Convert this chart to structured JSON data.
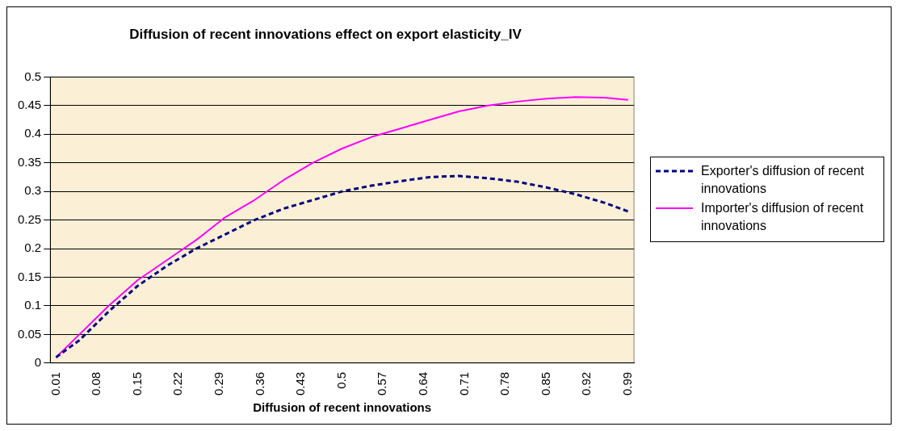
{
  "chart_data": {
    "type": "line",
    "title": "Diffusion of recent innovations effect on export elasticity_IV",
    "xlabel": "Diffusion of recent innovations",
    "x": [
      0.01,
      0.05,
      0.1,
      0.15,
      0.2,
      0.25,
      0.3,
      0.35,
      0.4,
      0.45,
      0.5,
      0.55,
      0.6,
      0.65,
      0.7,
      0.75,
      0.8,
      0.85,
      0.9,
      0.95,
      0.99
    ],
    "series": [
      {
        "name": "Exporter's diffusion of recent innovations",
        "color": "#000080",
        "line_style": "dashed",
        "values": [
          0.01,
          0.04,
          0.09,
          0.135,
          0.17,
          0.2,
          0.225,
          0.25,
          0.27,
          0.285,
          0.3,
          0.31,
          0.318,
          0.325,
          0.327,
          0.323,
          0.317,
          0.307,
          0.295,
          0.28,
          0.265
        ]
      },
      {
        "name": "Importer's diffusion of recent innovations",
        "color": "#ff00ff",
        "line_style": "solid",
        "values": [
          0.01,
          0.05,
          0.1,
          0.145,
          0.18,
          0.215,
          0.255,
          0.285,
          0.32,
          0.35,
          0.375,
          0.395,
          0.41,
          0.425,
          0.44,
          0.45,
          0.457,
          0.462,
          0.465,
          0.464,
          0.46
        ]
      }
    ],
    "xlim": [
      0,
      1
    ],
    "xticks": [
      0.01,
      0.08,
      0.15,
      0.22,
      0.29,
      0.36,
      0.43,
      0.5,
      0.57,
      0.64,
      0.71,
      0.78,
      0.85,
      0.92,
      0.99
    ],
    "ylim": [
      0,
      0.5
    ],
    "yticks": [
      0,
      0.05,
      0.1,
      0.15,
      0.2,
      0.25,
      0.3,
      0.35,
      0.4,
      0.45,
      0.5
    ],
    "grid": "y",
    "legend": "right",
    "marker": "none"
  }
}
